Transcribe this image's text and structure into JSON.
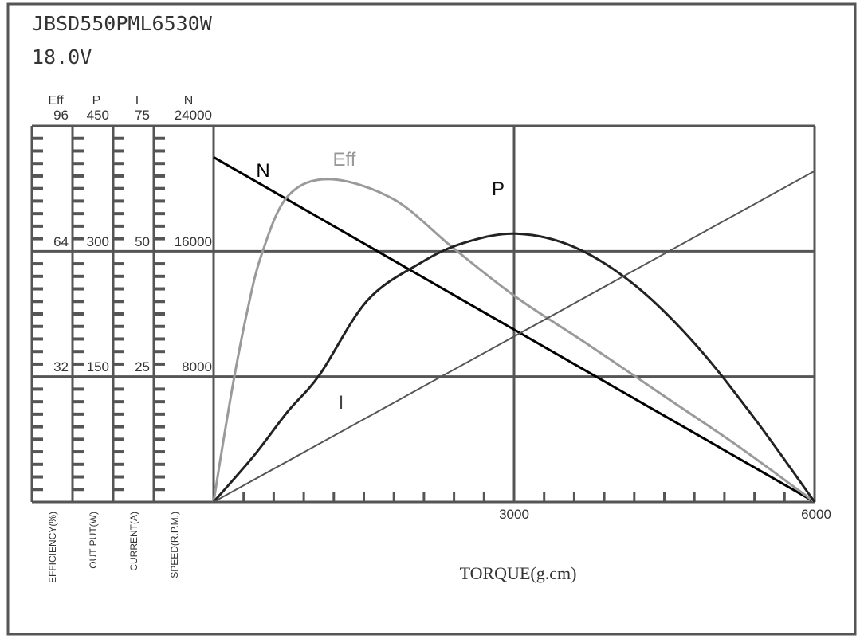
{
  "chart_data": {
    "type": "line",
    "title": "JBSD550PML6530W",
    "subtitle": "18.0V",
    "xlabel": "TORQUE(g.cm)",
    "xlim": [
      0,
      6000
    ],
    "x_tick_labels": [
      "3000",
      "6000"
    ],
    "grid": true,
    "axes": [
      {
        "key": "Eff",
        "label": "EFFICIENCY(%)",
        "range": [
          0,
          96
        ],
        "tick_labels": [
          "96",
          "64",
          "32"
        ],
        "header": "Eff"
      },
      {
        "key": "P",
        "label": "OUT PUT(W)",
        "range": [
          0,
          450
        ],
        "tick_labels": [
          "450",
          "300",
          "150"
        ],
        "header": "P"
      },
      {
        "key": "I",
        "label": "CURRENT(A)",
        "range": [
          0,
          75
        ],
        "tick_labels": [
          "75",
          "50",
          "25"
        ],
        "header": "I"
      },
      {
        "key": "N",
        "label": "SPEED(R.P.M.)",
        "range": [
          0,
          24000
        ],
        "tick_labels": [
          "24000",
          "16000",
          "8000"
        ],
        "header": "N"
      }
    ],
    "series": [
      {
        "name": "N",
        "axis": "N",
        "color": "#000000",
        "x": [
          0,
          6000
        ],
        "y": [
          22000,
          0
        ]
      },
      {
        "name": "Eff",
        "axis": "Eff",
        "color": "#9a9a9a",
        "x": [
          0,
          100,
          207,
          330,
          477,
          739,
          1160,
          1796,
          2384,
          3020,
          3750,
          4500,
          5250,
          6000
        ],
        "y": [
          0,
          16,
          32,
          48,
          63,
          78,
          82.4,
          77.3,
          65,
          52.3,
          40,
          27,
          14,
          0
        ]
      },
      {
        "name": "P",
        "axis": "P",
        "color": "#222222",
        "x": [
          0,
          400,
          739,
          1057,
          1534,
          2066,
          2500,
          3020,
          3600,
          4200,
          4800,
          5400,
          6000
        ],
        "y": [
          0,
          55,
          108,
          152,
          241,
          286,
          310,
          321,
          305,
          260,
          190,
          100,
          0
        ]
      },
      {
        "name": "I",
        "axis": "I",
        "color": "#555555",
        "x": [
          0,
          6000
        ],
        "y": [
          0,
          66
        ]
      }
    ]
  }
}
